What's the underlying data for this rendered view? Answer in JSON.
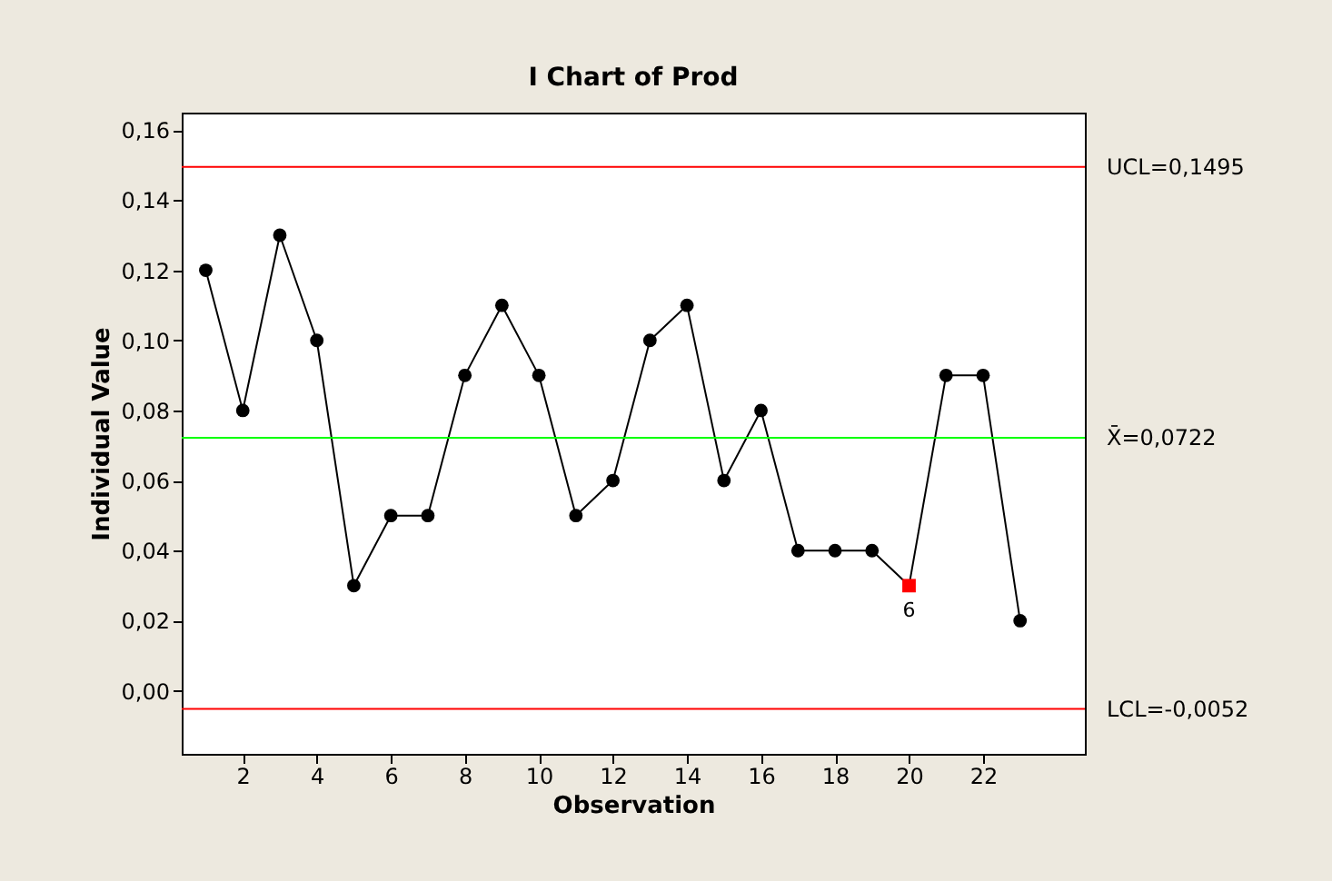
{
  "chart_data": {
    "type": "line",
    "title": "I Chart of Prod",
    "xlabel": "Observation",
    "ylabel": "Individual Value",
    "x": [
      1,
      2,
      3,
      4,
      5,
      6,
      7,
      8,
      9,
      10,
      11,
      12,
      13,
      14,
      15,
      16,
      17,
      18,
      19,
      20,
      21,
      22,
      23
    ],
    "series": [
      {
        "color": "#000000",
        "marker": "none",
        "values": [
          0.12,
          0.08,
          0.13,
          0.1,
          0.03,
          0.05,
          0.05,
          0.09,
          0.11,
          0.09,
          0.05,
          0.06,
          0.1,
          0.11,
          0.06,
          0.08,
          0.04,
          0.04,
          0.04,
          0.03,
          0.09,
          0.09,
          0.02
        ]
      },
      {
        "type": "scatter",
        "color": "#000000",
        "marker": "circle",
        "values": [
          0.12,
          0.08,
          0.13,
          0.1,
          0.03,
          0.05,
          0.05,
          0.09,
          0.11,
          0.09,
          0.05,
          0.06,
          0.1,
          0.11,
          0.06,
          0.08,
          0.04,
          0.04,
          0.04,
          null,
          0.09,
          0.09,
          0.02
        ]
      },
      {
        "type": "scatter",
        "color": "#ff0000",
        "marker": "square",
        "x": [
          20
        ],
        "values": [
          0.03
        ]
      }
    ],
    "ref_lines": [
      {
        "axis": "y",
        "value": 0.1495,
        "label": "UCL=0,1495",
        "color": "#ff0000"
      },
      {
        "axis": "y",
        "value": 0.0722,
        "label": "X̄=0,0722",
        "color": "#00ff00"
      },
      {
        "axis": "y",
        "value": -0.0052,
        "label": "LCL=-0,0052",
        "color": "#ff0000"
      }
    ],
    "annotations": [
      {
        "text": "6",
        "x": 20,
        "y": 0.03
      }
    ],
    "xlim": [
      0.35,
      24.75
    ],
    "xticks": [
      2,
      4,
      6,
      8,
      10,
      12,
      14,
      16,
      18,
      20,
      22
    ],
    "ylim": [
      -0.018,
      0.165
    ],
    "yticks": [
      {
        "value": 0,
        "label": "0,00"
      },
      {
        "value": 0.02,
        "label": "0,02"
      },
      {
        "value": 0.04,
        "label": "0,04"
      },
      {
        "value": 0.06,
        "label": "0,06"
      },
      {
        "value": 0.08,
        "label": "0,08"
      },
      {
        "value": 0.1,
        "label": "0,10"
      },
      {
        "value": 0.12,
        "label": "0,12"
      },
      {
        "value": 0.14,
        "label": "0,14"
      },
      {
        "value": 0.16,
        "label": "0,16"
      }
    ],
    "grid": false
  }
}
